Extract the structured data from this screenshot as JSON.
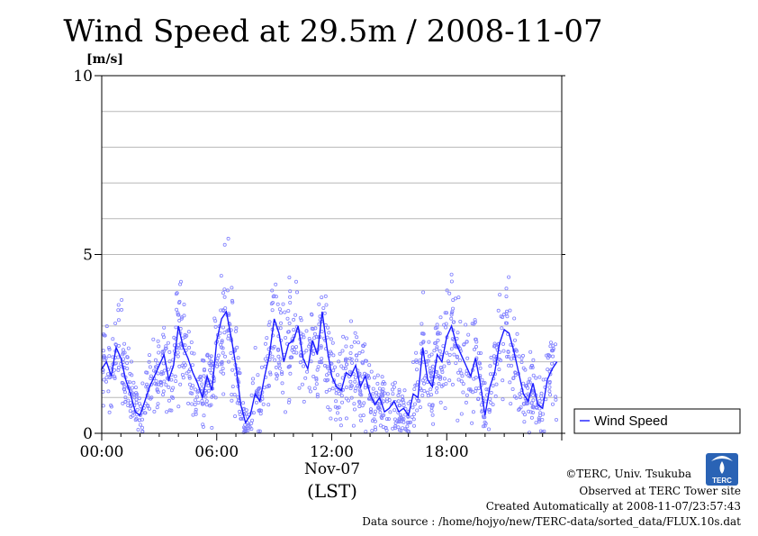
{
  "chart_data": {
    "type": "line",
    "title": "Wind Speed at 29.5m / 2008-11-07",
    "ylabel": "[m/s]",
    "xlabel": "(LST)",
    "date_label": "Nov-07",
    "ylim": [
      0,
      10
    ],
    "xlim_hours": [
      0,
      24
    ],
    "yticks": [
      0,
      5,
      10
    ],
    "ytick_labels": [
      "0",
      "5",
      "10"
    ],
    "xticks_hours": [
      0,
      6,
      12,
      18
    ],
    "xtick_labels": [
      "00:00",
      "06:00",
      "12:00",
      "18:00"
    ],
    "grid": true,
    "legend": "right",
    "series": [
      {
        "name": "Wind Speed",
        "color": "#1a1aff",
        "x_hours": [
          0.0,
          0.25,
          0.5,
          0.75,
          1.0,
          1.25,
          1.5,
          1.75,
          2.0,
          2.25,
          2.5,
          2.75,
          3.0,
          3.25,
          3.5,
          3.75,
          4.0,
          4.25,
          4.5,
          4.75,
          5.0,
          5.25,
          5.5,
          5.75,
          6.0,
          6.25,
          6.5,
          6.75,
          7.0,
          7.25,
          7.5,
          7.75,
          8.0,
          8.25,
          8.5,
          8.75,
          9.0,
          9.25,
          9.5,
          9.75,
          10.0,
          10.25,
          10.5,
          10.75,
          11.0,
          11.25,
          11.5,
          11.75,
          12.0,
          12.25,
          12.5,
          12.75,
          13.0,
          13.25,
          13.5,
          13.75,
          14.0,
          14.25,
          14.5,
          14.75,
          15.0,
          15.25,
          15.5,
          15.75,
          16.0,
          16.25,
          16.5,
          16.75,
          17.0,
          17.25,
          17.5,
          17.75,
          18.0,
          18.25,
          18.5,
          18.75,
          19.0,
          19.25,
          19.5,
          19.75,
          20.0,
          20.25,
          20.5,
          20.75,
          21.0,
          21.25,
          21.5,
          21.75,
          22.0,
          22.25,
          22.5,
          22.75,
          23.0,
          23.25,
          23.5,
          23.75
        ],
        "values": [
          1.8,
          2.0,
          1.6,
          2.4,
          2.1,
          1.5,
          1.1,
          0.6,
          0.5,
          0.9,
          1.3,
          1.6,
          1.9,
          2.2,
          1.5,
          1.9,
          3.0,
          2.4,
          2.1,
          1.7,
          1.4,
          1.0,
          1.6,
          1.2,
          2.6,
          3.2,
          3.4,
          2.7,
          1.9,
          0.8,
          0.3,
          0.5,
          1.1,
          0.9,
          1.6,
          2.2,
          3.2,
          2.8,
          2.0,
          2.5,
          2.6,
          3.0,
          2.1,
          1.8,
          2.6,
          2.2,
          3.4,
          2.4,
          1.6,
          1.3,
          1.2,
          1.7,
          1.6,
          1.9,
          1.3,
          1.6,
          1.1,
          0.8,
          1.0,
          0.6,
          0.7,
          0.9,
          0.6,
          0.7,
          0.5,
          1.1,
          1.0,
          2.4,
          1.5,
          1.3,
          2.2,
          2.0,
          2.7,
          3.0,
          2.5,
          2.2,
          1.9,
          1.6,
          2.1,
          1.4,
          0.5,
          1.3,
          1.7,
          2.5,
          2.9,
          2.8,
          2.3,
          1.7,
          1.1,
          0.9,
          1.4,
          0.8,
          0.7,
          1.5,
          1.8,
          2.0
        ]
      }
    ]
  },
  "legend": {
    "label": "Wind Speed"
  },
  "credits": {
    "copyright": "©TERC, Univ. Tsukuba",
    "observed": "Observed at TERC Tower site",
    "created": "Created Automatically at 2008-11-07/23:57:43",
    "source": "Data source : /home/hojyo/new/TERC-data/sorted_data/FLUX.10s.dat"
  },
  "logo": {
    "text": "TERC"
  },
  "colors": {
    "line": "#1a1aff",
    "scatter": "#8080ff",
    "grid": "#b8b8b8",
    "logo": "#2a63b5"
  }
}
